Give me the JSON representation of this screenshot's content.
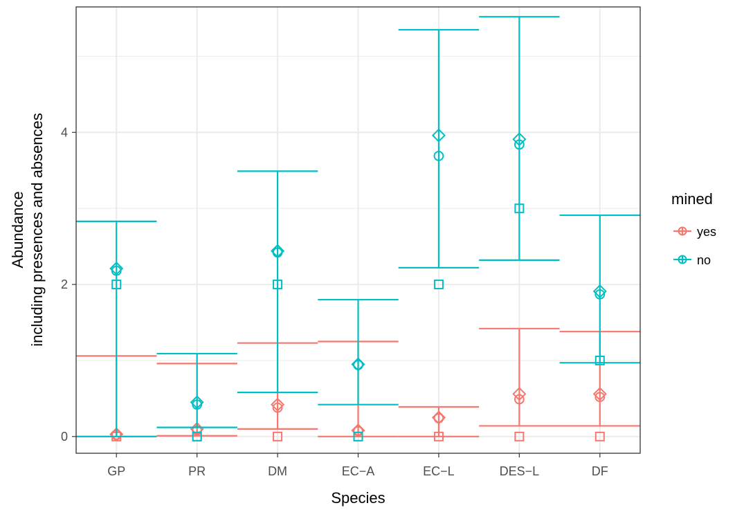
{
  "chart_data": {
    "type": "errorbar-point",
    "xlabel": "Species",
    "ylabel_lines": [
      "Abundance",
      "including presences and absences"
    ],
    "categories": [
      "GP",
      "PR",
      "DM",
      "EC−A",
      "EC−L",
      "DES−L",
      "DF"
    ],
    "ylim": [
      -0.22,
      5.65
    ],
    "yticks": [
      0,
      2,
      4
    ],
    "grid": true,
    "legend": {
      "title": "mined",
      "position": "right",
      "entries": [
        "yes",
        "no"
      ]
    },
    "marker_shapes": [
      "circle",
      "diamond",
      "square"
    ],
    "series": [
      {
        "name": "yes",
        "color": "#F8766D",
        "error_lower": [
          0.0,
          0.01,
          0.1,
          0.0,
          0.0,
          0.14,
          0.14
        ],
        "error_upper": [
          1.06,
          0.96,
          1.23,
          1.25,
          0.39,
          1.42,
          1.38
        ],
        "circle": [
          0.02,
          0.08,
          0.38,
          0.07,
          0.24,
          0.49,
          0.52
        ],
        "diamond": [
          0.03,
          0.1,
          0.42,
          0.08,
          0.25,
          0.56,
          0.56
        ],
        "square": [
          0,
          0,
          0,
          0,
          0,
          0,
          0
        ]
      },
      {
        "name": "no",
        "color": "#00BFC4",
        "error_lower": [
          0.0,
          0.12,
          0.58,
          0.42,
          2.22,
          2.32,
          0.97
        ],
        "error_upper": [
          2.83,
          1.09,
          3.49,
          1.8,
          5.35,
          5.52,
          2.91
        ],
        "circle": [
          2.18,
          0.42,
          2.42,
          0.94,
          3.69,
          3.84,
          1.87
        ],
        "diamond": [
          2.21,
          0.45,
          2.44,
          0.95,
          3.96,
          3.91,
          1.91
        ],
        "square": [
          2,
          0,
          2,
          0,
          2,
          3,
          1
        ]
      }
    ]
  }
}
